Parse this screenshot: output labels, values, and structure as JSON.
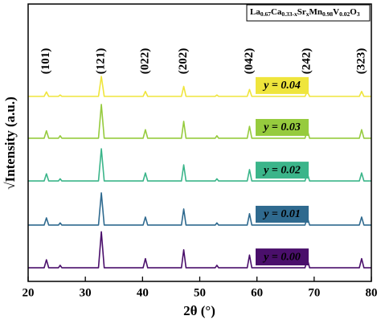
{
  "chart_data": {
    "type": "line",
    "xlabel": "2θ (°)",
    "ylabel": "√Intensity (a.u.)",
    "formula": [
      [
        "La",
        "0.67"
      ],
      [
        "Ca",
        "0.33-x"
      ],
      [
        "Sr",
        "x"
      ],
      [
        "Mn",
        "0.98"
      ],
      [
        "V",
        "0.02"
      ],
      [
        "O",
        "3"
      ]
    ],
    "annotations": [
      {
        "text": "(101)",
        "x": 23.2
      },
      {
        "text": "(121)",
        "x": 32.8
      },
      {
        "text": "(022)",
        "x": 40.5
      },
      {
        "text": "(202)",
        "x": 47.2
      },
      {
        "text": "(042)",
        "x": 58.7
      },
      {
        "text": "(242)",
        "x": 68.8
      },
      {
        "text": "(323)",
        "x": 78.3
      }
    ],
    "xlim": [
      20,
      80
    ],
    "xticks": [
      20,
      30,
      40,
      50,
      60,
      70,
      80
    ],
    "ylim": [
      0,
      100
    ],
    "x": [
      20,
      22.8,
      23.2,
      23.6,
      25.3,
      25.6,
      25.9,
      32.3,
      32.8,
      33.3,
      40.1,
      40.5,
      40.9,
      46.8,
      47.2,
      47.6,
      52.7,
      53,
      53.3,
      58.3,
      58.7,
      59.1,
      68.4,
      68.8,
      69.2,
      77.9,
      78.3,
      78.7,
      80
    ],
    "series": [
      {
        "name": "y = 0.00",
        "color": "#4a0f6b",
        "values": [
          4.9,
          4.9,
          7.8,
          4.9,
          4.9,
          5.8,
          4.9,
          4.9,
          17.9,
          4.9,
          4.9,
          8.2,
          4.9,
          4.9,
          11.4,
          4.9,
          4.9,
          5.8,
          4.9,
          4.9,
          9.5,
          4.9,
          4.9,
          8.2,
          4.9,
          4.9,
          8.2,
          4.9,
          4.9
        ]
      },
      {
        "name": "y = 0.01",
        "color": "#2f6a8f",
        "values": [
          20.3,
          20.3,
          22.9,
          20.3,
          20.3,
          21.1,
          20.3,
          20.3,
          31.9,
          20.3,
          20.3,
          23.2,
          20.3,
          20.3,
          26.1,
          20.3,
          20.3,
          21.1,
          20.3,
          20.3,
          24.4,
          20.3,
          20.3,
          23.2,
          20.3,
          20.3,
          23.2,
          20.3,
          20.3
        ]
      },
      {
        "name": "y = 0.02",
        "color": "#3bb58a",
        "values": [
          36.2,
          36.2,
          38.8,
          36.2,
          36.2,
          37.0,
          36.2,
          36.2,
          47.8,
          36.2,
          36.2,
          39.1,
          36.2,
          36.2,
          42.0,
          36.2,
          36.2,
          37.0,
          36.2,
          36.2,
          40.3,
          36.2,
          36.2,
          39.1,
          36.2,
          36.2,
          39.1,
          36.2,
          36.2
        ]
      },
      {
        "name": "y = 0.03",
        "color": "#96cb3e",
        "values": [
          51.6,
          51.6,
          54.3,
          51.6,
          51.6,
          52.5,
          51.6,
          51.6,
          63.8,
          51.6,
          51.6,
          54.7,
          51.6,
          51.6,
          57.7,
          51.6,
          51.6,
          52.5,
          51.6,
          51.6,
          55.9,
          51.6,
          51.6,
          54.7,
          51.6,
          51.6,
          54.7,
          51.6,
          51.6
        ]
      },
      {
        "name": "y = 0.04",
        "color": "#efe53c",
        "values": [
          66.7,
          66.7,
          68.3,
          66.7,
          66.7,
          67.2,
          66.7,
          66.7,
          73.9,
          66.7,
          66.7,
          68.5,
          66.7,
          66.7,
          70.3,
          66.7,
          66.7,
          67.2,
          66.7,
          66.7,
          69.2,
          66.7,
          66.7,
          68.5,
          66.7,
          66.7,
          68.5,
          66.7,
          66.7
        ]
      }
    ]
  }
}
